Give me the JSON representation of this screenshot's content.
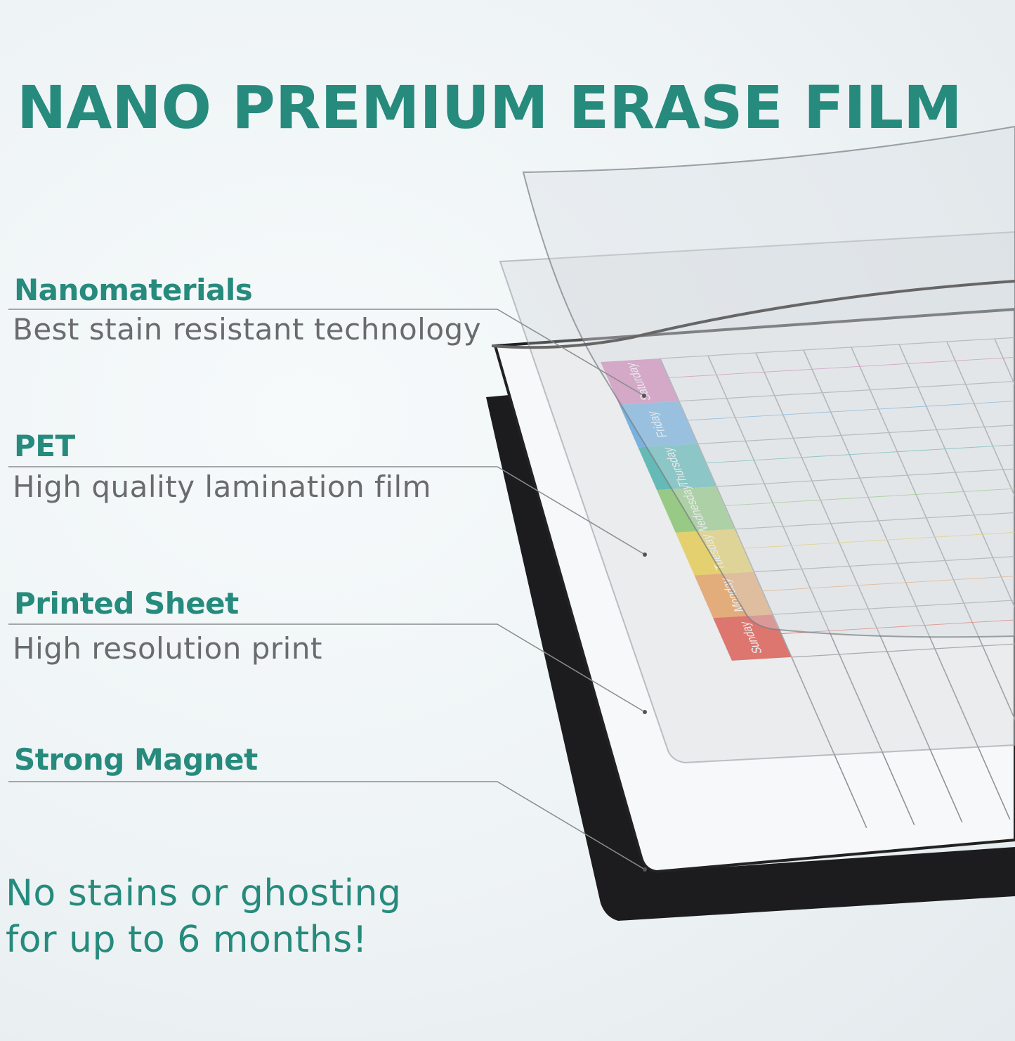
{
  "title": "NANO PREMIUM ERASE FILM",
  "features": [
    {
      "label": "Nanomaterials",
      "description": "Best stain resistant technology"
    },
    {
      "label": "PET",
      "description": "High quality lamination film"
    },
    {
      "label": "Printed Sheet",
      "description": "High resolution print"
    },
    {
      "label": "Strong Magnet",
      "description": ""
    }
  ],
  "tagline": {
    "line1": "No stains or ghosting",
    "line2": "for up to 6 months!"
  },
  "planner": {
    "days": [
      {
        "name": "Saturday",
        "color": "#d773b0"
      },
      {
        "name": "Friday",
        "color": "#5aa8e3"
      },
      {
        "name": "Thursday",
        "color": "#3fb3ae"
      },
      {
        "name": "Wednesday",
        "color": "#86c96a"
      },
      {
        "name": "Tuesday",
        "color": "#efd24a"
      },
      {
        "name": "Monday",
        "color": "#eea05a"
      },
      {
        "name": "Sunday",
        "color": "#e4554a"
      }
    ]
  },
  "colors": {
    "accent": "#268a7c",
    "text": "#6a6b6d",
    "board": "#1c1c1e"
  }
}
